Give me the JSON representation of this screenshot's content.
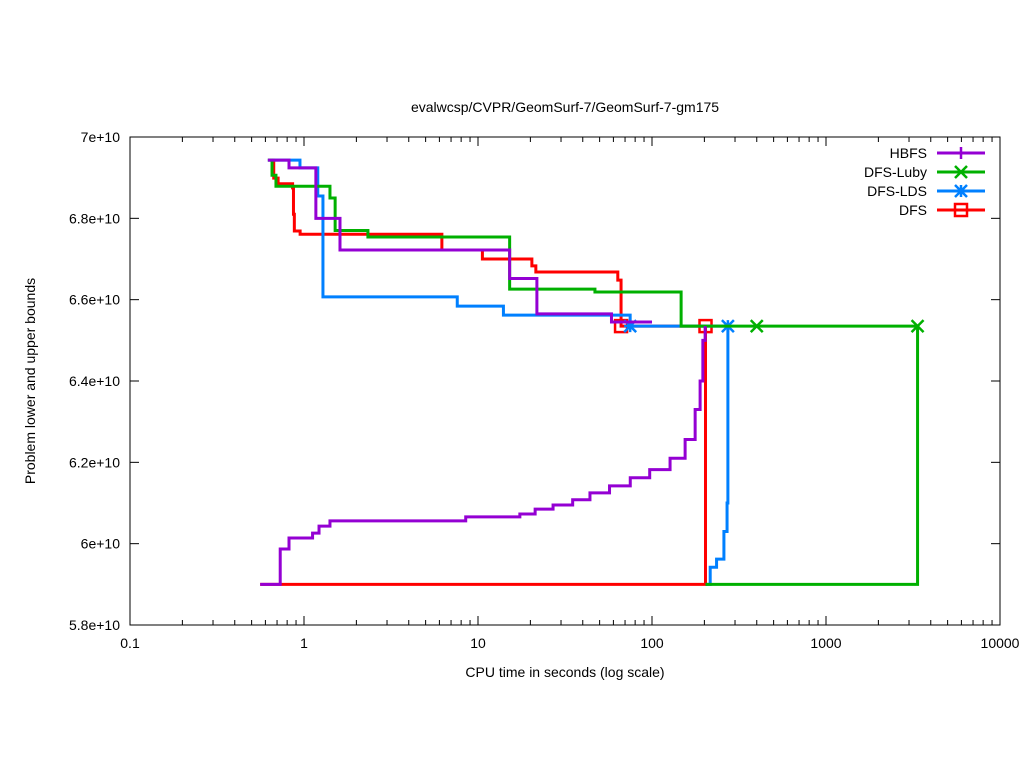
{
  "chart_data": {
    "type": "line",
    "title": "evalwcsp/CVPR/GeomSurf-7/GeomSurf-7-gm175",
    "xlabel": "CPU time in seconds (log scale)",
    "ylabel": "Problem lower and upper bounds",
    "xscale": "log",
    "xlim": [
      0.1,
      10000
    ],
    "ylim": [
      58000000000.0,
      70000000000.0
    ],
    "xticks": [
      0.1,
      1,
      10,
      100,
      1000,
      10000
    ],
    "xtick_labels": [
      "0.1",
      "1",
      "10",
      "100",
      "1000",
      "10000"
    ],
    "yticks": [
      58000000000.0,
      60000000000.0,
      62000000000.0,
      64000000000.0,
      66000000000.0,
      68000000000.0,
      70000000000.0
    ],
    "ytick_labels": [
      "5.8e+10",
      "6e+10",
      "6.2e+10",
      "6.4e+10",
      "6.6e+10",
      "6.8e+10",
      "7e+10"
    ],
    "legend_position": "top-right",
    "grid": false,
    "step": "after",
    "series": [
      {
        "name": "HBFS",
        "color": "#9400d3",
        "marker": "plus",
        "upper": [
          [
            0.62,
            69430000000.0
          ],
          [
            0.82,
            69240000000.0
          ],
          [
            1.17,
            68000000000.0
          ],
          [
            1.61,
            67220000000.0
          ],
          [
            15.2,
            66520000000.0
          ],
          [
            21.8,
            65650000000.0
          ],
          [
            58.5,
            65450000000.0
          ],
          [
            100,
            65450000000.0
          ]
        ],
        "lower": [
          [
            0.56,
            59000000000.0
          ],
          [
            0.73,
            59870000000.0
          ],
          [
            0.82,
            60140000000.0
          ],
          [
            1.12,
            60260000000.0
          ],
          [
            1.22,
            60430000000.0
          ],
          [
            1.41,
            60560000000.0
          ],
          [
            8.5,
            60660000000.0
          ],
          [
            17.4,
            60730000000.0
          ],
          [
            21.3,
            60850000000.0
          ],
          [
            27,
            60950000000.0
          ],
          [
            35,
            61080000000.0
          ],
          [
            44,
            61250000000.0
          ],
          [
            57,
            61420000000.0
          ],
          [
            75,
            61620000000.0
          ],
          [
            97,
            61820000000.0
          ],
          [
            127,
            62100000000.0
          ],
          [
            155,
            62560000000.0
          ],
          [
            177,
            63300000000.0
          ],
          [
            189,
            64000000000.0
          ],
          [
            196,
            65000000000.0
          ],
          [
            202,
            65350000000.0
          ]
        ],
        "markers": []
      },
      {
        "name": "DFS-Luby",
        "color": "#00b000",
        "marker": "cross",
        "upper": [
          [
            0.62,
            69430000000.0
          ],
          [
            0.655,
            69060000000.0
          ],
          [
            0.69,
            68790000000.0
          ],
          [
            1.41,
            68500000000.0
          ],
          [
            1.51,
            67700000000.0
          ],
          [
            2.33,
            67540000000.0
          ],
          [
            15.2,
            66260000000.0
          ],
          [
            47,
            66190000000.0
          ],
          [
            147,
            65350000000.0
          ],
          [
            3359,
            65350000000.0
          ]
        ],
        "lower": [
          [
            203,
            59000000000.0
          ],
          [
            3359,
            59000000000.0
          ],
          [
            3359,
            65350000000.0
          ]
        ],
        "markers": [
          [
            400,
            65350000000.0
          ],
          [
            3359,
            65350000000.0
          ]
        ]
      },
      {
        "name": "DFS-LDS",
        "color": "#0080ff",
        "marker": "star",
        "upper": [
          [
            0.62,
            69430000000.0
          ],
          [
            0.948,
            69240000000.0
          ],
          [
            1.2,
            68550000000.0
          ],
          [
            1.285,
            66070000000.0
          ],
          [
            7.6,
            65840000000.0
          ],
          [
            14,
            65620000000.0
          ],
          [
            74.9,
            65350000000.0
          ],
          [
            273,
            65350000000.0
          ]
        ],
        "lower": [
          [
            203,
            59000000000.0
          ],
          [
            216,
            59420000000.0
          ],
          [
            235,
            59620000000.0
          ],
          [
            259,
            60300000000.0
          ],
          [
            270,
            61000000000.0
          ],
          [
            273,
            65350000000.0
          ]
        ],
        "markers": [
          [
            74.9,
            65350000000.0
          ],
          [
            273,
            65350000000.0
          ]
        ]
      },
      {
        "name": "DFS",
        "color": "#ff0000",
        "marker": "square",
        "upper": [
          [
            0.655,
            69430000000.0
          ],
          [
            0.67,
            68990000000.0
          ],
          [
            0.71,
            68850000000.0
          ],
          [
            0.86,
            68750000000.0
          ],
          [
            0.87,
            68100000000.0
          ],
          [
            0.88,
            67690000000.0
          ],
          [
            0.95,
            67610000000.0
          ],
          [
            6.2,
            67220000000.0
          ],
          [
            10.6,
            67000000000.0
          ],
          [
            20.4,
            66830000000.0
          ],
          [
            21.5,
            66680000000.0
          ],
          [
            63.6,
            66480000000.0
          ],
          [
            66.4,
            65350000000.0
          ],
          [
            203,
            65350000000.0
          ]
        ],
        "lower": [
          [
            0.56,
            59000000000.0
          ],
          [
            203,
            59000000000.0
          ],
          [
            203,
            65350000000.0
          ]
        ],
        "markers": [
          [
            66.4,
            65350000000.0
          ],
          [
            203,
            65350000000.0
          ]
        ]
      }
    ]
  }
}
